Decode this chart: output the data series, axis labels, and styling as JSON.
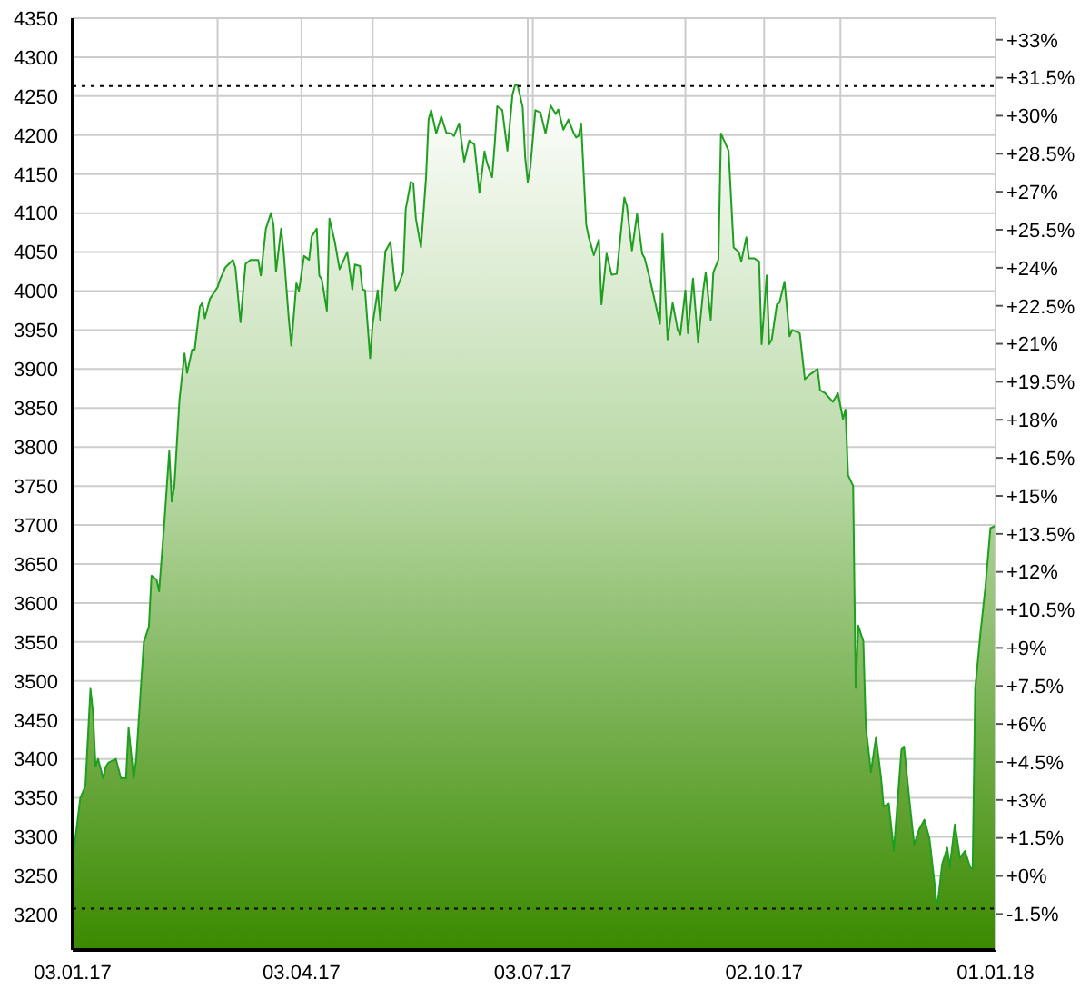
{
  "chart_data": {
    "type": "area",
    "grid": true,
    "xlim": [
      "2017-01-03",
      "2018-01-01"
    ],
    "xticks": [
      {
        "value": "2017-01-03",
        "label": "03.01.17"
      },
      {
        "value": "2017-03-01",
        "label": null
      },
      {
        "value": "2017-04-03",
        "label": "03.04.17"
      },
      {
        "value": "2017-05-01",
        "label": null
      },
      {
        "value": "2017-07-01",
        "label": null
      },
      {
        "value": "2017-07-03",
        "label": "03.07.17"
      },
      {
        "value": "2017-09-01",
        "label": null
      },
      {
        "value": "2017-10-02",
        "label": "02.10.17"
      },
      {
        "value": "2017-11-01",
        "label": null
      },
      {
        "value": "2018-01-01",
        "label": "01.01.18"
      }
    ],
    "ylim": [
      3155,
      4350
    ],
    "yticks": [
      3200,
      3250,
      3300,
      3350,
      3400,
      3450,
      3500,
      3550,
      3600,
      3650,
      3700,
      3750,
      3800,
      3850,
      3900,
      3950,
      4000,
      4050,
      4100,
      4150,
      4200,
      4250,
      4300,
      4350
    ],
    "y2lim": [
      -2.92,
      33.85
    ],
    "y2ticks": [
      {
        "value": -1.5,
        "label": "-1.5%"
      },
      {
        "value": 0,
        "label": "+0%"
      },
      {
        "value": 1.5,
        "label": "+1.5%"
      },
      {
        "value": 3,
        "label": "+3%"
      },
      {
        "value": 4.5,
        "label": "+4.5%"
      },
      {
        "value": 6,
        "label": "+6%"
      },
      {
        "value": 7.5,
        "label": "+7.5%"
      },
      {
        "value": 9,
        "label": "+9%"
      },
      {
        "value": 10.5,
        "label": "+10.5%"
      },
      {
        "value": 12,
        "label": "+12%"
      },
      {
        "value": 13.5,
        "label": "+13.5%"
      },
      {
        "value": 15,
        "label": "+15%"
      },
      {
        "value": 16.5,
        "label": "+16.5%"
      },
      {
        "value": 18,
        "label": "+18%"
      },
      {
        "value": 19.5,
        "label": "+19.5%"
      },
      {
        "value": 21,
        "label": "+21%"
      },
      {
        "value": 22.5,
        "label": "+22.5%"
      },
      {
        "value": 24,
        "label": "+24%"
      },
      {
        "value": 25.5,
        "label": "+25.5%"
      },
      {
        "value": 27,
        "label": "+27%"
      },
      {
        "value": 28.5,
        "label": "+28.5%"
      },
      {
        "value": 30,
        "label": "+30%"
      },
      {
        "value": 31.5,
        "label": "+31.5%"
      },
      {
        "value": 33,
        "label": "+33%"
      }
    ],
    "ref_lines": [
      {
        "axis": "y",
        "value": 4263,
        "color": "#000000",
        "line_style": "dotted"
      },
      {
        "axis": "y",
        "value": 3208,
        "color": "#000000",
        "line_style": "dotted"
      }
    ],
    "series": [
      {
        "color": "#1f9f1f",
        "x": [
          "2017-01-03",
          "2017-01-06",
          "2017-01-08",
          "2017-01-10",
          "2017-01-11",
          "2017-01-12",
          "2017-01-13",
          "2017-01-15",
          "2017-01-16",
          "2017-01-17",
          "2017-01-20",
          "2017-01-22",
          "2017-01-24",
          "2017-01-25",
          "2017-01-27",
          "2017-01-28",
          "2017-01-31",
          "2017-02-02",
          "2017-02-03",
          "2017-02-05",
          "2017-02-06",
          "2017-02-08",
          "2017-02-10",
          "2017-02-11",
          "2017-02-12",
          "2017-02-14",
          "2017-02-16",
          "2017-02-17",
          "2017-02-19",
          "2017-02-20",
          "2017-02-22",
          "2017-02-23",
          "2017-02-24",
          "2017-02-26",
          "2017-03-01",
          "2017-03-02",
          "2017-03-04",
          "2017-03-07",
          "2017-03-08",
          "2017-03-10",
          "2017-03-12",
          "2017-03-14",
          "2017-03-15",
          "2017-03-17",
          "2017-03-18",
          "2017-03-20",
          "2017-03-22",
          "2017-03-23",
          "2017-03-24",
          "2017-03-26",
          "2017-03-27",
          "2017-03-29",
          "2017-03-30",
          "2017-04-01",
          "2017-04-02",
          "2017-04-04",
          "2017-04-06",
          "2017-04-07",
          "2017-04-09",
          "2017-04-10",
          "2017-04-11",
          "2017-04-13",
          "2017-04-14",
          "2017-04-16",
          "2017-04-18",
          "2017-04-21",
          "2017-04-23",
          "2017-04-24",
          "2017-04-26",
          "2017-04-27",
          "2017-04-28",
          "2017-04-30",
          "2017-05-01",
          "2017-05-03",
          "2017-05-04",
          "2017-05-06",
          "2017-05-08",
          "2017-05-10",
          "2017-05-11",
          "2017-05-13",
          "2017-05-14",
          "2017-05-16",
          "2017-05-17",
          "2017-05-18",
          "2017-05-20",
          "2017-05-22",
          "2017-05-23",
          "2017-05-24",
          "2017-05-26",
          "2017-05-28",
          "2017-05-30",
          "2017-06-01",
          "2017-06-02",
          "2017-06-04",
          "2017-06-06",
          "2017-06-08",
          "2017-06-10",
          "2017-06-12",
          "2017-06-14",
          "2017-06-15",
          "2017-06-17",
          "2017-06-18",
          "2017-06-19",
          "2017-06-21",
          "2017-06-23",
          "2017-06-25",
          "2017-06-26",
          "2017-06-27",
          "2017-06-29",
          "2017-06-30",
          "2017-07-01",
          "2017-07-02",
          "2017-07-04",
          "2017-07-06",
          "2017-07-08",
          "2017-07-10",
          "2017-07-12",
          "2017-07-13",
          "2017-07-15",
          "2017-07-17",
          "2017-07-19",
          "2017-07-20",
          "2017-07-21",
          "2017-07-22",
          "2017-07-24",
          "2017-07-25",
          "2017-07-27",
          "2017-07-29",
          "2017-07-30",
          "2017-08-01",
          "2017-08-03",
          "2017-08-05",
          "2017-08-08",
          "2017-08-09",
          "2017-08-11",
          "2017-08-13",
          "2017-08-15",
          "2017-08-16",
          "2017-08-18",
          "2017-08-22",
          "2017-08-23",
          "2017-08-25",
          "2017-08-27",
          "2017-08-29",
          "2017-08-30",
          "2017-09-01",
          "2017-09-02",
          "2017-09-04",
          "2017-09-06",
          "2017-09-08",
          "2017-09-09",
          "2017-09-11",
          "2017-09-12",
          "2017-09-14",
          "2017-09-15",
          "2017-09-18",
          "2017-09-20",
          "2017-09-22",
          "2017-09-23",
          "2017-09-25",
          "2017-09-26",
          "2017-09-28",
          "2017-09-30",
          "2017-10-01",
          "2017-10-03",
          "2017-10-04",
          "2017-10-05",
          "2017-10-07",
          "2017-10-08",
          "2017-10-10",
          "2017-10-12",
          "2017-10-13",
          "2017-10-16",
          "2017-10-18",
          "2017-10-20",
          "2017-10-23",
          "2017-10-24",
          "2017-10-26",
          "2017-10-29",
          "2017-10-31",
          "2017-11-02",
          "2017-11-03",
          "2017-11-04",
          "2017-11-06",
          "2017-11-07",
          "2017-11-08",
          "2017-11-10",
          "2017-11-11",
          "2017-11-13",
          "2017-11-15",
          "2017-11-17",
          "2017-11-18",
          "2017-11-20",
          "2017-11-22",
          "2017-11-25",
          "2017-11-26",
          "2017-11-28",
          "2017-11-30",
          "2017-12-02",
          "2017-12-04",
          "2017-12-06",
          "2017-12-08",
          "2017-12-09",
          "2017-12-11",
          "2017-12-13",
          "2017-12-14",
          "2017-12-16",
          "2017-12-18",
          "2017-12-20",
          "2017-12-22",
          "2017-12-23",
          "2017-12-24",
          "2017-12-26",
          "2017-12-28",
          "2017-12-30",
          "2018-01-01"
        ],
        "values": [
          3270,
          3350,
          3365,
          3490,
          3460,
          3390,
          3400,
          3375,
          3390,
          3395,
          3400,
          3375,
          3375,
          3440,
          3375,
          3400,
          3550,
          3570,
          3635,
          3630,
          3615,
          3700,
          3795,
          3730,
          3750,
          3860,
          3920,
          3895,
          3925,
          3925,
          3980,
          3985,
          3965,
          3990,
          4005,
          4015,
          4030,
          4040,
          4030,
          3960,
          4035,
          4040,
          4040,
          4040,
          4020,
          4080,
          4100,
          4085,
          4025,
          4080,
          4050,
          3965,
          3930,
          4010,
          4000,
          4045,
          4040,
          4070,
          4080,
          4020,
          4015,
          3975,
          4093,
          4065,
          4028,
          4050,
          4002,
          4034,
          4032,
          4002,
          4001,
          3914,
          3958,
          4001,
          3962,
          4051,
          4063,
          4001,
          4007,
          4024,
          4105,
          4140,
          4138,
          4093,
          4056,
          4146,
          4220,
          4232,
          4202,
          4224,
          4203,
          4202,
          4199,
          4215,
          4166,
          4193,
          4188,
          4126,
          4179,
          4164,
          4146,
          4188,
          4237,
          4232,
          4180,
          4252,
          4264,
          4264,
          4236,
          4171,
          4140,
          4158,
          4232,
          4229,
          4202,
          4238,
          4227,
          4233,
          4207,
          4220,
          4203,
          4197,
          4199,
          4215,
          4085,
          4069,
          4046,
          4066,
          3983,
          4048,
          4021,
          4022,
          4120,
          4109,
          4052,
          4099,
          4048,
          4042,
          4016,
          3958,
          4073,
          3938,
          3985,
          3950,
          3944,
          4001,
          3946,
          4016,
          3934,
          4000,
          4024,
          3963,
          4024,
          4040,
          4202,
          4180,
          4056,
          4050,
          4038,
          4069,
          4042,
          4042,
          4038,
          3932,
          4020,
          3932,
          3938,
          3983,
          3985,
          4012,
          3942,
          3950,
          3946,
          3887,
          3893,
          3900,
          3873,
          3869,
          3858,
          3869,
          3836,
          3848,
          3764,
          3750,
          3491,
          3571,
          3551,
          3441,
          3383,
          3428,
          3375,
          3339,
          3343,
          3282,
          3412,
          3416,
          3351,
          3290,
          3310,
          3322,
          3298,
          3241,
          3208,
          3265,
          3286,
          3261,
          3316,
          3273,
          3282,
          3261,
          3259,
          3490,
          3559,
          3620,
          3696,
          3699
        ]
      }
    ]
  }
}
